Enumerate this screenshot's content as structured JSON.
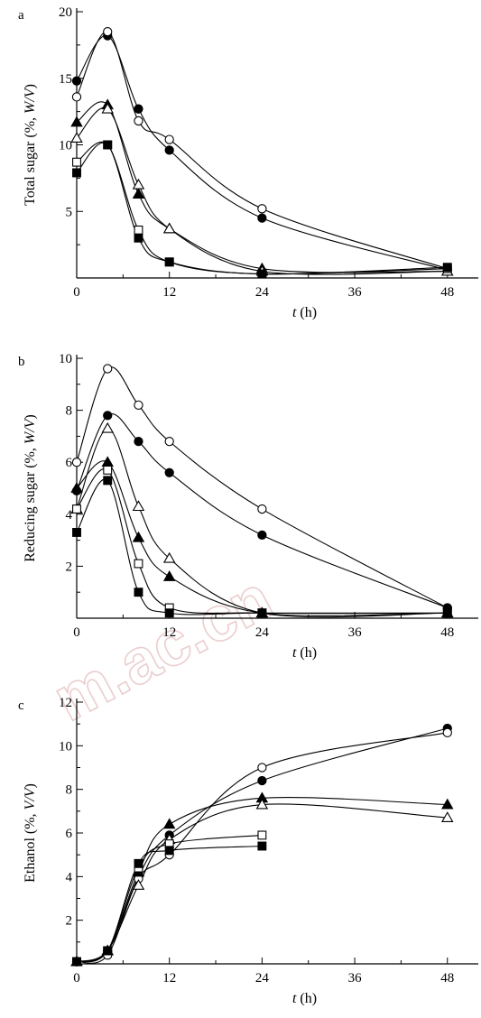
{
  "watermark": "m.ac.cn",
  "chart_data": [
    {
      "panel": "a",
      "type": "line",
      "xlabel_italic": "t",
      "xlabel_unit": " (h)",
      "ylabel_prefix": "Total sugar (%, ",
      "ylabel_italic": "W/V",
      "ylabel_suffix": ")",
      "xlim": [
        0,
        52
      ],
      "ylim": [
        0,
        20
      ],
      "xticks": [
        0,
        12,
        24,
        36,
        48
      ],
      "yticks": [
        5,
        10,
        15,
        20
      ],
      "ytick_labels": [
        "5",
        "10",
        "15",
        "20"
      ],
      "series": [
        {
          "marker": "circle-filled",
          "x": [
            0,
            4,
            8,
            12,
            24,
            48
          ],
          "y": [
            14.8,
            18.2,
            12.7,
            9.6,
            4.5,
            0.6
          ]
        },
        {
          "marker": "circle-open",
          "x": [
            0,
            4,
            8,
            12,
            24,
            48
          ],
          "y": [
            13.6,
            18.5,
            11.8,
            10.4,
            5.2,
            0.7
          ]
        },
        {
          "marker": "triangle-filled",
          "x": [
            0,
            4,
            8,
            12,
            24,
            48
          ],
          "y": [
            11.7,
            13.0,
            6.3,
            3.7,
            0.7,
            0.5
          ]
        },
        {
          "marker": "triangle-open",
          "x": [
            0,
            4,
            8,
            12,
            24,
            48
          ],
          "y": [
            10.5,
            12.7,
            7.0,
            3.7,
            0.5,
            0.5
          ]
        },
        {
          "marker": "square-open",
          "x": [
            0,
            4,
            8,
            12,
            24,
            48
          ],
          "y": [
            8.7,
            10.0,
            3.6,
            1.2,
            0.3,
            0.7
          ]
        },
        {
          "marker": "square-filled",
          "x": [
            0,
            4,
            8,
            12,
            24,
            48
          ],
          "y": [
            7.9,
            10.0,
            3.0,
            1.2,
            0.3,
            0.8
          ]
        }
      ]
    },
    {
      "panel": "b",
      "type": "line",
      "xlabel_italic": "t",
      "xlabel_unit": " (h)",
      "ylabel_prefix": "Reducing sugar (%, ",
      "ylabel_italic": "W/V",
      "ylabel_suffix": ")",
      "xlim": [
        0,
        52
      ],
      "ylim": [
        0,
        10
      ],
      "xticks": [
        0,
        12,
        24,
        36,
        48
      ],
      "yticks": [
        2,
        4,
        6,
        8,
        10
      ],
      "ytick_labels": [
        "2",
        "4",
        "6",
        "8",
        "10"
      ],
      "series": [
        {
          "marker": "circle-open",
          "x": [
            0,
            4,
            8,
            12,
            24,
            48
          ],
          "y": [
            6.0,
            9.6,
            8.2,
            6.8,
            4.2,
            0.4
          ]
        },
        {
          "marker": "circle-filled",
          "x": [
            0,
            4,
            8,
            12,
            24,
            48
          ],
          "y": [
            4.9,
            7.8,
            6.8,
            5.6,
            3.2,
            0.4
          ]
        },
        {
          "marker": "triangle-open",
          "x": [
            0,
            4,
            8,
            12,
            24,
            48
          ],
          "y": [
            4.2,
            7.3,
            4.3,
            2.3,
            0.2,
            0.2
          ]
        },
        {
          "marker": "triangle-filled",
          "x": [
            0,
            4,
            8,
            12,
            24,
            48
          ],
          "y": [
            5.0,
            6.0,
            3.1,
            1.6,
            0.2,
            0.2
          ]
        },
        {
          "marker": "square-open",
          "x": [
            0,
            4,
            8,
            12,
            24,
            48
          ],
          "y": [
            4.2,
            5.7,
            2.1,
            0.4,
            0.2,
            0.2
          ]
        },
        {
          "marker": "square-filled",
          "x": [
            0,
            4,
            8,
            12,
            24,
            48
          ],
          "y": [
            3.3,
            5.3,
            1.0,
            0.2,
            0.2,
            0.2
          ]
        }
      ]
    },
    {
      "panel": "c",
      "type": "line",
      "xlabel_italic": "t",
      "xlabel_unit": " (h)",
      "ylabel_prefix": "Ethanol (%, ",
      "ylabel_italic": "V/V",
      "ylabel_suffix": ")",
      "xlim": [
        0,
        52
      ],
      "ylim": [
        0,
        12
      ],
      "xticks": [
        0,
        12,
        24,
        36,
        48
      ],
      "yticks": [
        2,
        4,
        6,
        8,
        10,
        12
      ],
      "ytick_labels": [
        "2",
        "4",
        "6",
        "8",
        "10",
        "12"
      ],
      "series": [
        {
          "marker": "circle-filled",
          "x": [
            0,
            4,
            8,
            12,
            24,
            48
          ],
          "y": [
            0.1,
            0.6,
            4.0,
            5.9,
            8.4,
            10.8
          ]
        },
        {
          "marker": "circle-open",
          "x": [
            0,
            4,
            8,
            12,
            24,
            48
          ],
          "y": [
            0.1,
            0.4,
            3.9,
            5.0,
            9.0,
            10.6
          ]
        },
        {
          "marker": "triangle-filled",
          "x": [
            0,
            4,
            8,
            12,
            24,
            48
          ],
          "y": [
            0.1,
            0.6,
            4.2,
            6.4,
            7.6,
            7.3
          ]
        },
        {
          "marker": "triangle-open",
          "x": [
            0,
            4,
            8,
            12,
            24,
            48
          ],
          "y": [
            0.1,
            0.6,
            3.6,
            5.7,
            7.3,
            6.7
          ]
        },
        {
          "marker": "square-open",
          "x": [
            0,
            4,
            8,
            12,
            24
          ],
          "y": [
            0.1,
            0.6,
            4.4,
            5.5,
            5.9
          ]
        },
        {
          "marker": "square-filled",
          "x": [
            0,
            4,
            8,
            12,
            24
          ],
          "y": [
            0.1,
            0.6,
            4.6,
            5.2,
            5.4
          ]
        }
      ]
    }
  ]
}
